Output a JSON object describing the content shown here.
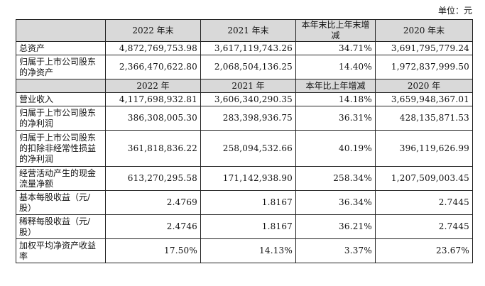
{
  "unit_label": "单位：元",
  "header1": [
    "",
    "2022 年末",
    "2021 年末",
    "本年末比上年末增减",
    "2020 年末"
  ],
  "block1": [
    {
      "label": "总资产",
      "v2022": "4,872,769,753.98",
      "v2021": "3,617,119,743.26",
      "change": "34.71%",
      "v2020": "3,691,795,779.24"
    },
    {
      "label": "归属于上市公司股东的净资产",
      "v2022": "2,366,470,622.80",
      "v2021": "2,068,504,136.25",
      "change": "14.40%",
      "v2020": "1,972,837,999.50"
    }
  ],
  "header2": [
    "",
    "2022 年",
    "2021 年",
    "本年比上年增减",
    "2020 年"
  ],
  "block2": [
    {
      "label": "营业收入",
      "v2022": "4,117,698,932.81",
      "v2021": "3,606,340,290.35",
      "change": "14.18%",
      "v2020": "3,659,948,367.01"
    },
    {
      "label": "归属于上市公司股东的净利润",
      "v2022": "386,308,005.30",
      "v2021": "283,398,936.75",
      "change": "36.31%",
      "v2020": "428,135,871.53"
    },
    {
      "label": "归属于上市公司股东的扣除非经常性损益的净利润",
      "v2022": "361,818,836.22",
      "v2021": "258,094,532.66",
      "change": "40.19%",
      "v2020": "396,119,626.99"
    },
    {
      "label": "经营活动产生的现金流量净额",
      "v2022": "613,270,295.58",
      "v2021": "171,142,938.90",
      "change": "258.34%",
      "v2020": "1,207,509,003.45"
    },
    {
      "label": "基本每股收益（元/股）",
      "v2022": "2.4769",
      "v2021": "1.8167",
      "change": "36.34%",
      "v2020": "2.7445"
    },
    {
      "label": "稀释每股收益（元/股）",
      "v2022": "2.4746",
      "v2021": "1.8167",
      "change": "36.21%",
      "v2020": "2.7445"
    },
    {
      "label": "加权平均净资产收益率",
      "v2022": "17.50%",
      "v2021": "14.13%",
      "change": "3.37%",
      "v2020": "23.67%"
    }
  ]
}
